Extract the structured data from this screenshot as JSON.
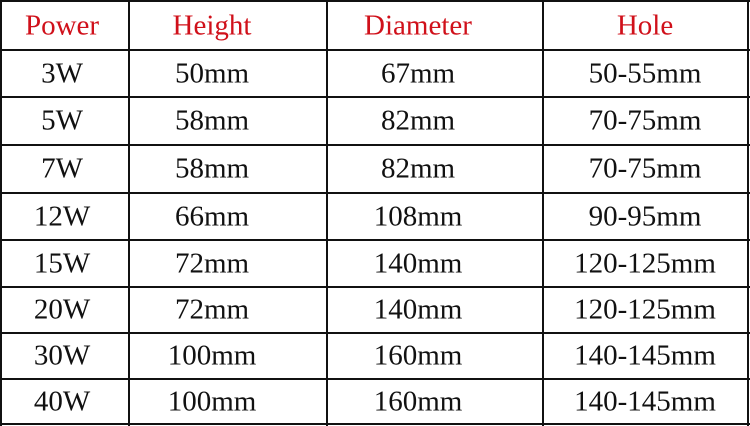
{
  "table": {
    "header": [
      "Power",
      "Height",
      "Diameter",
      "Hole"
    ],
    "rows": [
      [
        "3W",
        "50mm",
        "67mm",
        "50-55mm"
      ],
      [
        "5W",
        "58mm",
        "82mm",
        "70-75mm"
      ],
      [
        "7W",
        "58mm",
        "82mm",
        "70-75mm"
      ],
      [
        "12W",
        "66mm",
        "108mm",
        "90-95mm"
      ],
      [
        "15W",
        "72mm",
        "140mm",
        "120-125mm"
      ],
      [
        "20W",
        "72mm",
        "140mm",
        "120-125mm"
      ],
      [
        "30W",
        "100mm",
        "160mm",
        "140-145mm"
      ],
      [
        "40W",
        "100mm",
        "160mm",
        "140-145mm"
      ]
    ]
  }
}
